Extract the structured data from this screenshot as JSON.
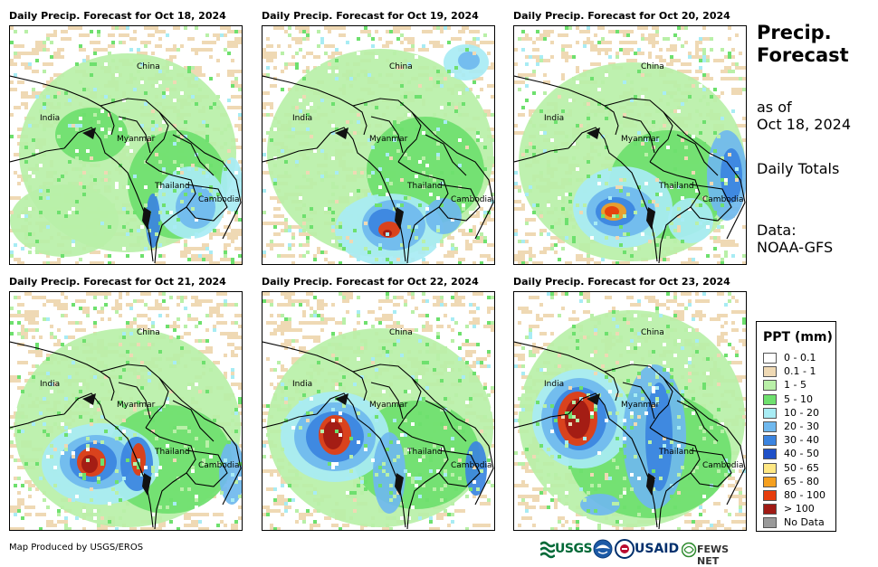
{
  "panels": [
    {
      "title": "Daily Precip. Forecast for Oct 18, 2024",
      "rain_level": "low"
    },
    {
      "title": "Daily Precip. Forecast for Oct 19, 2024",
      "rain_level": "moderate"
    },
    {
      "title": "Daily Precip. Forecast for Oct 20, 2024",
      "rain_level": "moderate"
    },
    {
      "title": "Daily Precip. Forecast for Oct 21, 2024",
      "rain_level": "high"
    },
    {
      "title": "Daily Precip. Forecast for Oct 22, 2024",
      "rain_level": "high"
    },
    {
      "title": "Daily Precip. Forecast for Oct 23, 2024",
      "rain_level": "high"
    }
  ],
  "places": {
    "china": "China",
    "india": "India",
    "myanmar": "Myanmar",
    "thailand": "Thailand",
    "cambodia": "Cambodia"
  },
  "sidebar": {
    "title": "Precip. Forecast",
    "as_of_label": "as of",
    "as_of_date": "Oct 18, 2024",
    "totals": "Daily Totals",
    "data_label": "Data:",
    "data_source": "NOAA-GFS"
  },
  "legend": {
    "title": "PPT (mm)",
    "items": [
      {
        "label": "0 - 0.1",
        "color": "#ffffff"
      },
      {
        "label": "0.1 - 1",
        "color": "#efd9b4"
      },
      {
        "label": "1 - 5",
        "color": "#b9f0a8"
      },
      {
        "label": "5 - 10",
        "color": "#6ee06e"
      },
      {
        "label": "10 - 20",
        "color": "#a8ecf4"
      },
      {
        "label": "20 - 30",
        "color": "#6fb8ee"
      },
      {
        "label": "30 - 40",
        "color": "#3b84e0"
      },
      {
        "label": "40 - 50",
        "color": "#1e50c8"
      },
      {
        "label": "50 - 65",
        "color": "#ffe884"
      },
      {
        "label": "65 - 80",
        "color": "#f5a020"
      },
      {
        "label": "80 - 100",
        "color": "#e63c0c"
      },
      {
        "label": "> 100",
        "color": "#a01a14"
      },
      {
        "label": "No Data",
        "color": "#9a9a9a"
      }
    ]
  },
  "footer": {
    "credit": "Map Produced by USGS/EROS",
    "logos": {
      "usgs": "USGS",
      "usaid": "USAID",
      "fews": "FEWS NET"
    }
  }
}
